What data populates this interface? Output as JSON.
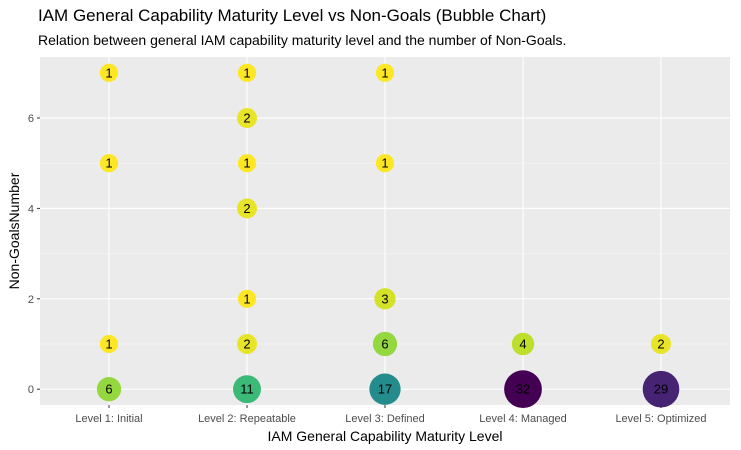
{
  "chart_data": {
    "type": "scatter",
    "title": "IAM General Capability Maturity Level vs Non-Goals (Bubble Chart)",
    "subtitle": "Relation between general IAM capability maturity level and the number of Non-Goals.",
    "xlabel": "IAM General Capability Maturity Level",
    "ylabel": "Non-GoalsNumber",
    "categories": [
      "Level 1: Initial",
      "Level 2: Repeatable",
      "Level 3: Defined",
      "Level 4: Managed",
      "Level 5: Optimized"
    ],
    "yticks": [
      0,
      2,
      4,
      6
    ],
    "ylim": [
      -0.35,
      7.35
    ],
    "grid": true,
    "legend": "none",
    "colors": {
      "panel": "#EBEBEB",
      "grid_major": "#FFFFFF",
      "grid_minor": "#F5F5F5",
      "scale_low": "#FDE725",
      "scale_high": "#440154"
    },
    "color_scale": "viridis (reversed)",
    "count_range": [
      1,
      32
    ],
    "points": [
      {
        "x": "Level 1: Initial",
        "y": 7,
        "count": 1
      },
      {
        "x": "Level 1: Initial",
        "y": 5,
        "count": 1
      },
      {
        "x": "Level 1: Initial",
        "y": 1,
        "count": 1
      },
      {
        "x": "Level 1: Initial",
        "y": 0,
        "count": 6
      },
      {
        "x": "Level 2: Repeatable",
        "y": 7,
        "count": 1
      },
      {
        "x": "Level 2: Repeatable",
        "y": 6,
        "count": 2
      },
      {
        "x": "Level 2: Repeatable",
        "y": 5,
        "count": 1
      },
      {
        "x": "Level 2: Repeatable",
        "y": 4,
        "count": 2
      },
      {
        "x": "Level 2: Repeatable",
        "y": 2,
        "count": 1
      },
      {
        "x": "Level 2: Repeatable",
        "y": 1,
        "count": 2
      },
      {
        "x": "Level 2: Repeatable",
        "y": 0,
        "count": 11
      },
      {
        "x": "Level 3: Defined",
        "y": 7,
        "count": 1
      },
      {
        "x": "Level 3: Defined",
        "y": 5,
        "count": 1
      },
      {
        "x": "Level 3: Defined",
        "y": 2,
        "count": 3
      },
      {
        "x": "Level 3: Defined",
        "y": 1,
        "count": 6
      },
      {
        "x": "Level 3: Defined",
        "y": 0,
        "count": 17
      },
      {
        "x": "Level 4: Managed",
        "y": 1,
        "count": 4
      },
      {
        "x": "Level 4: Managed",
        "y": 0,
        "count": 32
      },
      {
        "x": "Level 5: Optimized",
        "y": 1,
        "count": 2
      },
      {
        "x": "Level 5: Optimized",
        "y": 0,
        "count": 29
      }
    ]
  }
}
